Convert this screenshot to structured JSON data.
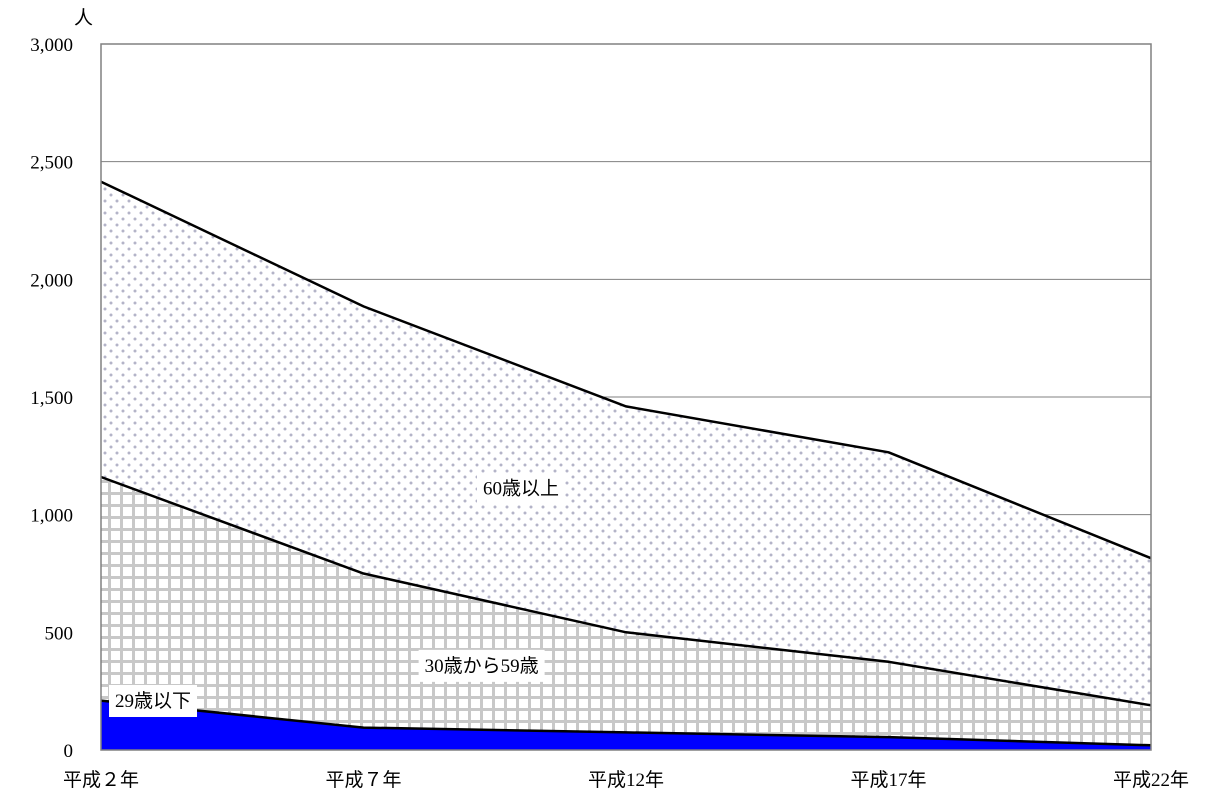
{
  "chart_data": {
    "type": "area",
    "stacked": true,
    "categories": [
      "平成２年",
      "平成７年",
      "平成12年",
      "平成17年",
      "平成22年"
    ],
    "series": [
      {
        "name": "29歳以下",
        "values": [
          210,
          95,
          75,
          55,
          20
        ],
        "color": "#0000ff",
        "fill": "solid"
      },
      {
        "name": "30歳から59歳",
        "values": [
          950,
          655,
          425,
          320,
          170
        ],
        "color": "#c8c8c8",
        "fill": "grid"
      },
      {
        "name": "60歳以上",
        "values": [
          1255,
          1135,
          960,
          890,
          625
        ],
        "color": "#b4b4c8",
        "fill": "dots"
      }
    ],
    "y_unit": "人",
    "yticks": [
      "0",
      "500",
      "1,000",
      "1,500",
      "2,000",
      "2,500",
      "3,000"
    ],
    "ylim": [
      0,
      3000
    ],
    "grid": "horizontal",
    "legend": "inline labels"
  }
}
